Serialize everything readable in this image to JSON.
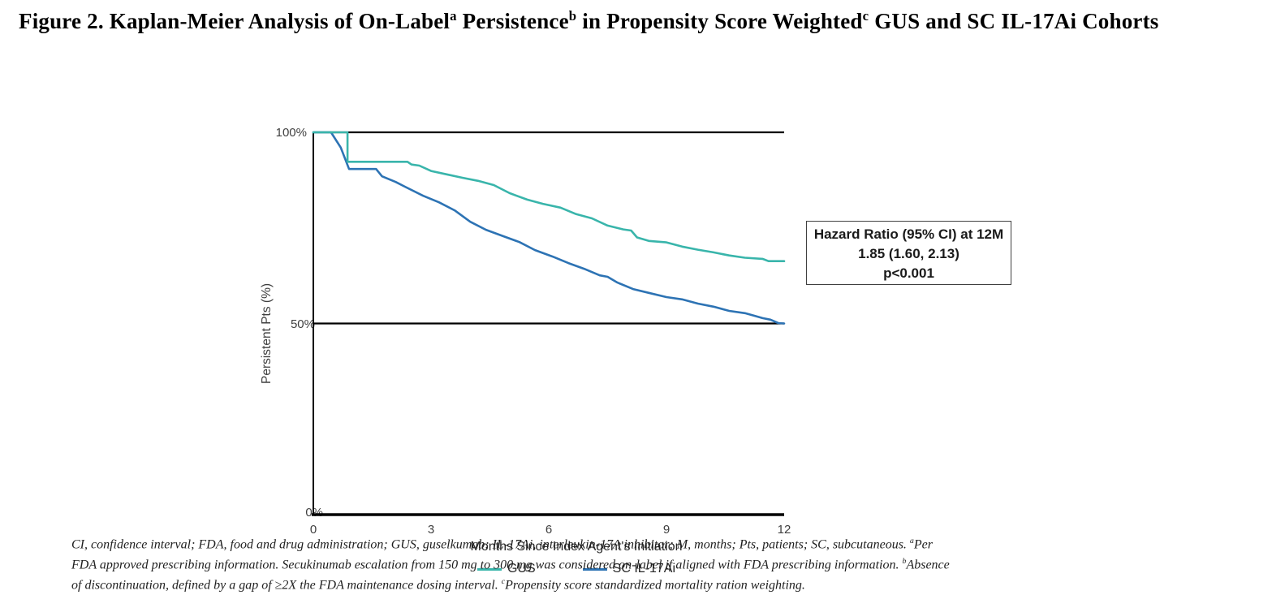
{
  "title": {
    "segments": [
      {
        "t": "Figure 2. Kaplan-Meier Analysis of On-Label"
      },
      {
        "t": "a",
        "sup": true
      },
      {
        "t": " Persistence"
      },
      {
        "t": "b",
        "sup": true
      },
      {
        "t": " in Propensity Score Weighted"
      },
      {
        "t": "c",
        "sup": true
      },
      {
        "t": " GUS and SC IL-17Ai Cohorts"
      }
    ]
  },
  "chart_data": {
    "type": "line",
    "subtype": "kaplan-meier-step",
    "xlabel": "Months Since Index Agent's Initiation",
    "ylabel": "Persistent Pts (%)",
    "xlim": [
      0,
      12
    ],
    "ylim": [
      0,
      100
    ],
    "x_tick_labels": [
      "0",
      "3",
      "6",
      "9",
      "12"
    ],
    "x_tick_values": [
      0,
      3,
      6,
      9,
      12
    ],
    "y_tick_labels": [
      "100%",
      "50%",
      "0%"
    ],
    "y_tick_values": [
      100,
      50,
      0
    ],
    "reference_lines": [
      100,
      50
    ],
    "grid": false,
    "legend_position": "bottom",
    "axis_color": "#000000",
    "series": [
      {
        "name": "GUS",
        "color": "#39b5ab",
        "points": [
          [
            0,
            100
          ],
          [
            0.87,
            100
          ],
          [
            0.87,
            92.3
          ],
          [
            2.4,
            92.3
          ],
          [
            2.5,
            91.6
          ],
          [
            2.7,
            91.3
          ],
          [
            3.0,
            89.9
          ],
          [
            3.4,
            89.0
          ],
          [
            3.8,
            88.1
          ],
          [
            4.2,
            87.3
          ],
          [
            4.6,
            86.2
          ],
          [
            5.0,
            84.1
          ],
          [
            5.45,
            82.4
          ],
          [
            5.85,
            81.3
          ],
          [
            6.3,
            80.3
          ],
          [
            6.7,
            78.6
          ],
          [
            7.1,
            77.5
          ],
          [
            7.5,
            75.6
          ],
          [
            7.9,
            74.6
          ],
          [
            8.1,
            74.3
          ],
          [
            8.25,
            72.5
          ],
          [
            8.55,
            71.6
          ],
          [
            9.0,
            71.2
          ],
          [
            9.4,
            70.1
          ],
          [
            9.8,
            69.3
          ],
          [
            10.2,
            68.6
          ],
          [
            10.6,
            67.8
          ],
          [
            11.0,
            67.2
          ],
          [
            11.45,
            66.9
          ],
          [
            11.6,
            66.3
          ],
          [
            12,
            66.3
          ]
        ]
      },
      {
        "name": "SC IL-17Ai",
        "color": "#2d73b4",
        "points": [
          [
            0,
            100
          ],
          [
            0.45,
            100
          ],
          [
            0.7,
            96.0
          ],
          [
            0.91,
            90.4
          ],
          [
            1.6,
            90.4
          ],
          [
            1.75,
            88.5
          ],
          [
            2.1,
            87.0
          ],
          [
            2.35,
            85.7
          ],
          [
            2.8,
            83.4
          ],
          [
            3.2,
            81.7
          ],
          [
            3.6,
            79.6
          ],
          [
            4.0,
            76.6
          ],
          [
            4.4,
            74.5
          ],
          [
            4.85,
            72.8
          ],
          [
            5.25,
            71.3
          ],
          [
            5.65,
            69.2
          ],
          [
            6.1,
            67.5
          ],
          [
            6.5,
            65.8
          ],
          [
            6.9,
            64.3
          ],
          [
            7.3,
            62.6
          ],
          [
            7.5,
            62.2
          ],
          [
            7.75,
            60.7
          ],
          [
            8.15,
            59.0
          ],
          [
            8.55,
            58.0
          ],
          [
            9.0,
            56.9
          ],
          [
            9.4,
            56.3
          ],
          [
            9.8,
            55.2
          ],
          [
            10.2,
            54.4
          ],
          [
            10.6,
            53.3
          ],
          [
            11.0,
            52.7
          ],
          [
            11.25,
            52.0
          ],
          [
            11.45,
            51.4
          ],
          [
            11.65,
            51.0
          ],
          [
            11.85,
            50.1
          ],
          [
            12,
            50.0
          ]
        ]
      }
    ]
  },
  "annotation_box": {
    "line1": "Hazard Ratio (95% CI) at 12M",
    "line2": "1.85 (1.60, 2.13)",
    "line3": "p<0.001"
  },
  "footnote": {
    "lines": [
      [
        {
          "t": "CI, confidence interval; FDA, food and drug administration; GUS, guselkumab; IL-17Ai, interleukin-17A inhibitor; M, months; Pts, patients; SC, subcutaneous. "
        },
        {
          "t": "a",
          "sup": true
        },
        {
          "t": "Per"
        }
      ],
      [
        {
          "t": "FDA approved prescribing information. Secukinumab escalation from 150 mg to 300 mg was considered on-label if aligned with FDA prescribing information. "
        },
        {
          "t": "b",
          "sup": true
        },
        {
          "t": "Absence"
        }
      ],
      [
        {
          "t": "of discontinuation, defined by a gap of ≥2X the FDA maintenance dosing interval. "
        },
        {
          "t": "c",
          "sup": true
        },
        {
          "t": "Propensity score standardized mortality ration weighting."
        }
      ]
    ]
  }
}
